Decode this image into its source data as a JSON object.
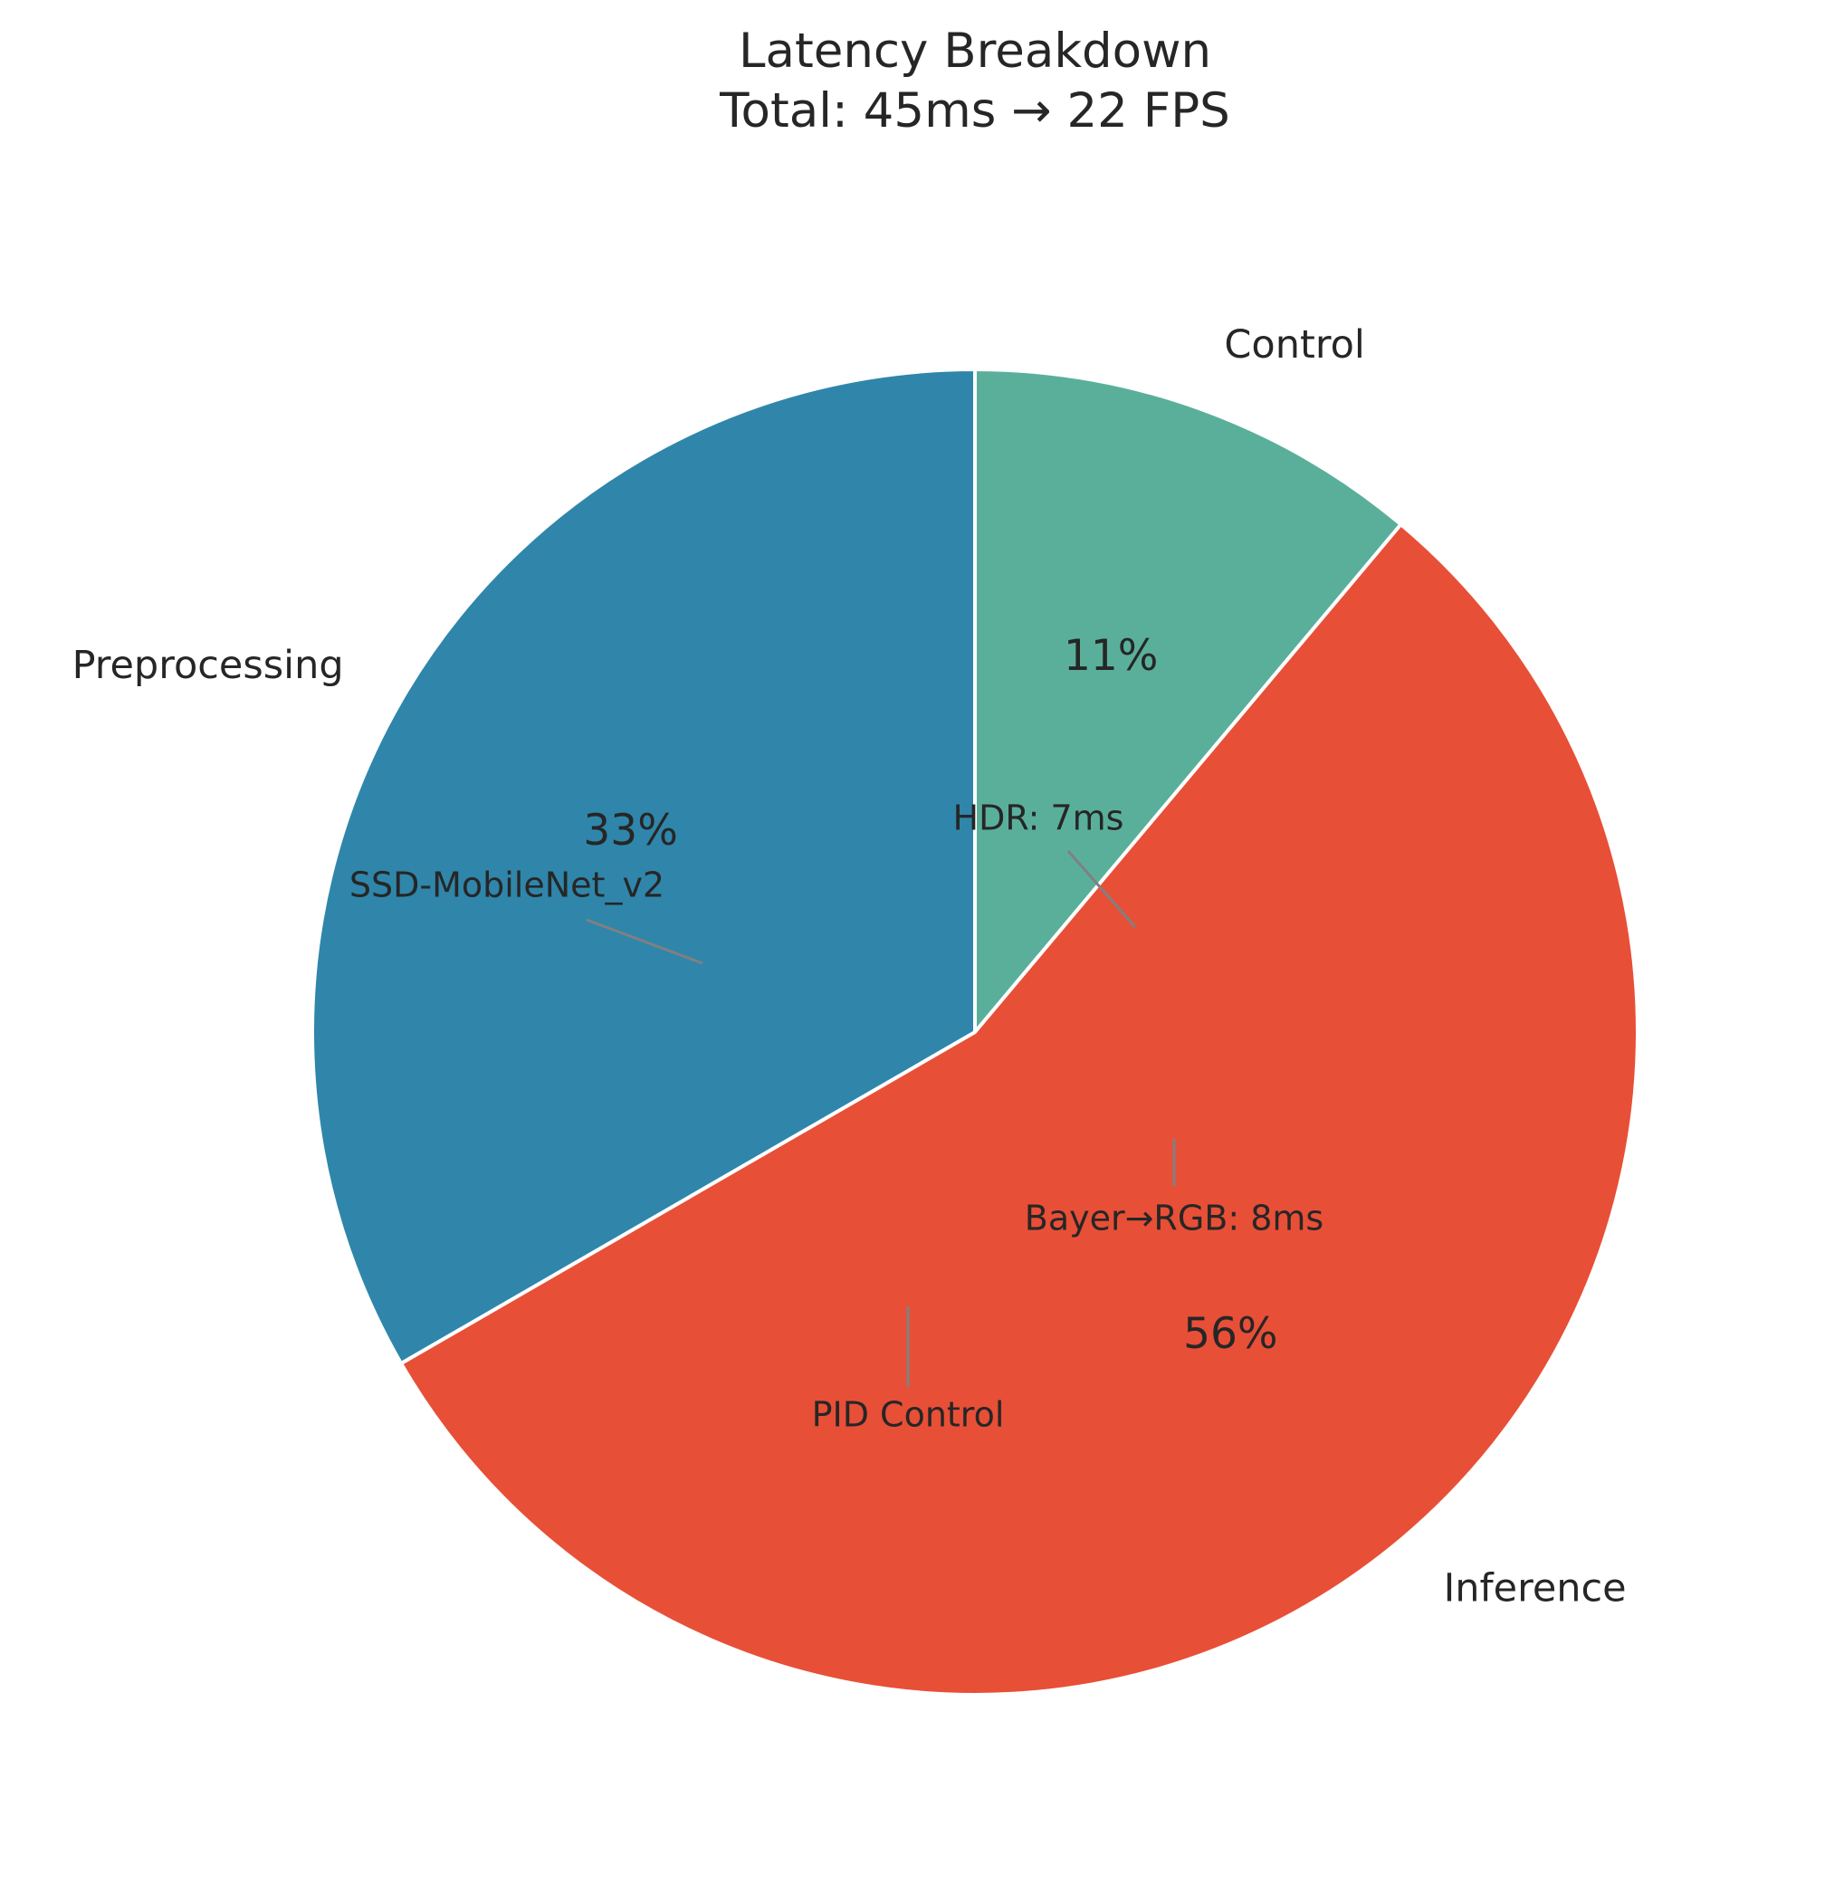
{
  "chart_data": {
    "type": "pie",
    "title": "Latency Breakdown",
    "subtitle": "Total: 45ms → 22 FPS",
    "start_angle_deg": 90,
    "direction": "clockwise",
    "slices": [
      {
        "label": "Control",
        "value": 5,
        "pct_label": "11%",
        "color": "#5aaf9b"
      },
      {
        "label": "Inference",
        "value": 25,
        "pct_label": "56%",
        "color": "#e84f37"
      },
      {
        "label": "Preprocessing",
        "value": 15,
        "pct_label": "33%",
        "color": "#2f86aa"
      }
    ],
    "annotations": [
      {
        "text": "HDR: 7ms"
      },
      {
        "text": "SSD-MobileNet_v2"
      },
      {
        "text": "Bayer→RGB: 8ms"
      },
      {
        "text": "PID Control"
      }
    ]
  }
}
